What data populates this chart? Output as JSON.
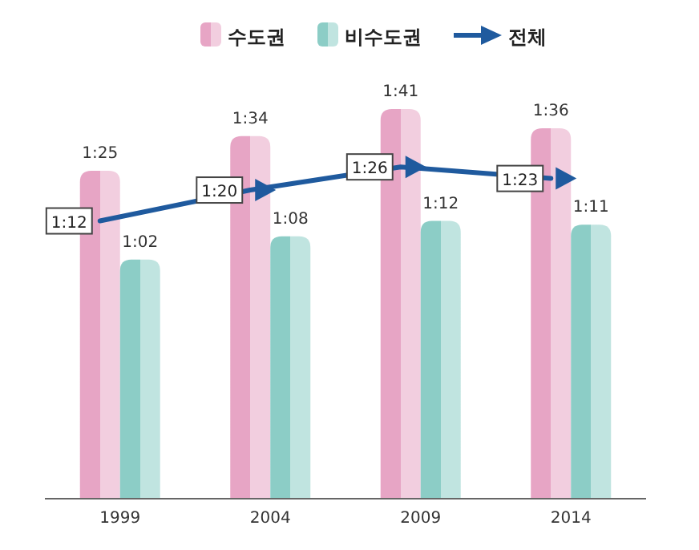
{
  "chart_data": {
    "type": "bar",
    "categories": [
      "1999",
      "2004",
      "2009",
      "2014"
    ],
    "legend": "top",
    "series": [
      {
        "name": "수도권",
        "color": "#e7a5c5",
        "values": [
          85,
          94,
          101,
          96
        ],
        "value_labels": [
          "1:25",
          "1:34",
          "1:41",
          "1:36"
        ]
      },
      {
        "name": "비수도권",
        "color": "#8ccdc6",
        "values": [
          62,
          68,
          72,
          71
        ],
        "value_labels": [
          "1:02",
          "1:08",
          "1:12",
          "1:11"
        ]
      },
      {
        "name": "전체",
        "type": "line",
        "color": "#1f5a9e",
        "values": [
          72,
          80,
          86,
          83
        ],
        "value_labels": [
          "1:12",
          "1:20",
          "1:26",
          "1:23"
        ]
      }
    ]
  }
}
